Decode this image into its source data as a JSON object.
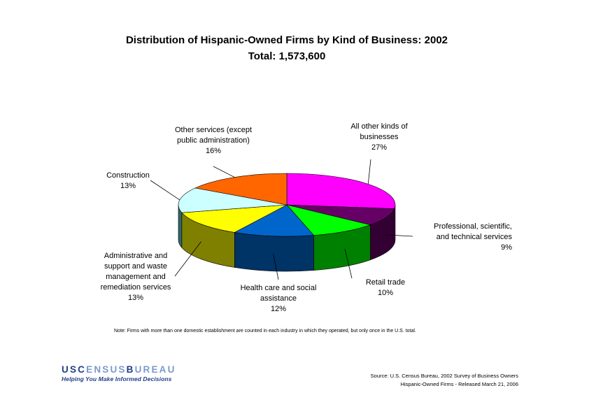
{
  "chart_data": {
    "type": "pie",
    "title": "Distribution of Hispanic-Owned Firms by Kind of Business:  2002",
    "subtitle": "Total:  1,573,600",
    "slices": [
      {
        "label_lines": [
          "All other kinds of",
          "businesses"
        ],
        "pct": "27%",
        "value": 27,
        "color": "#ff00ff",
        "side": "#800080"
      },
      {
        "label_lines": [
          "Professional, scientific,",
          "and technical services"
        ],
        "pct": "9%",
        "value": 9,
        "color": "#660066",
        "side": "#330033"
      },
      {
        "label_lines": [
          "Retail trade"
        ],
        "pct": "10%",
        "value": 10,
        "color": "#00ff00",
        "side": "#008000"
      },
      {
        "label_lines": [
          "Health care and social",
          "assistance"
        ],
        "pct": "12%",
        "value": 12,
        "color": "#0066cc",
        "side": "#003366"
      },
      {
        "label_lines": [
          "Administrative and",
          "support and waste",
          "management and",
          "remediation services"
        ],
        "pct": "13%",
        "value": 13,
        "color": "#ffff00",
        "side": "#808000"
      },
      {
        "label_lines": [
          "Construction"
        ],
        "pct": "13%",
        "value": 13,
        "color": "#ccffff",
        "side": "#336666"
      },
      {
        "label_lines": [
          "Other services (except",
          "public administration)"
        ],
        "pct": "16%",
        "value": 16,
        "color": "#ff6600",
        "side": "#993300"
      }
    ]
  },
  "note": "Note:  Firms with more than one domestic establishment are counted in each industry in which they operated, but only once in the U.S. total.",
  "source": {
    "line1": "Source:  U.S. Census Bureau, 2002 Survey of Business Owners",
    "line2": "Hispanic-Owned Firms - Released March 21, 2006"
  },
  "logo": {
    "main_dark1": "USC",
    "main_light1": "ENSUS",
    "main_dark2": "B",
    "main_light2": "UREAU",
    "tagline": "Helping You Make Informed Decisions"
  }
}
